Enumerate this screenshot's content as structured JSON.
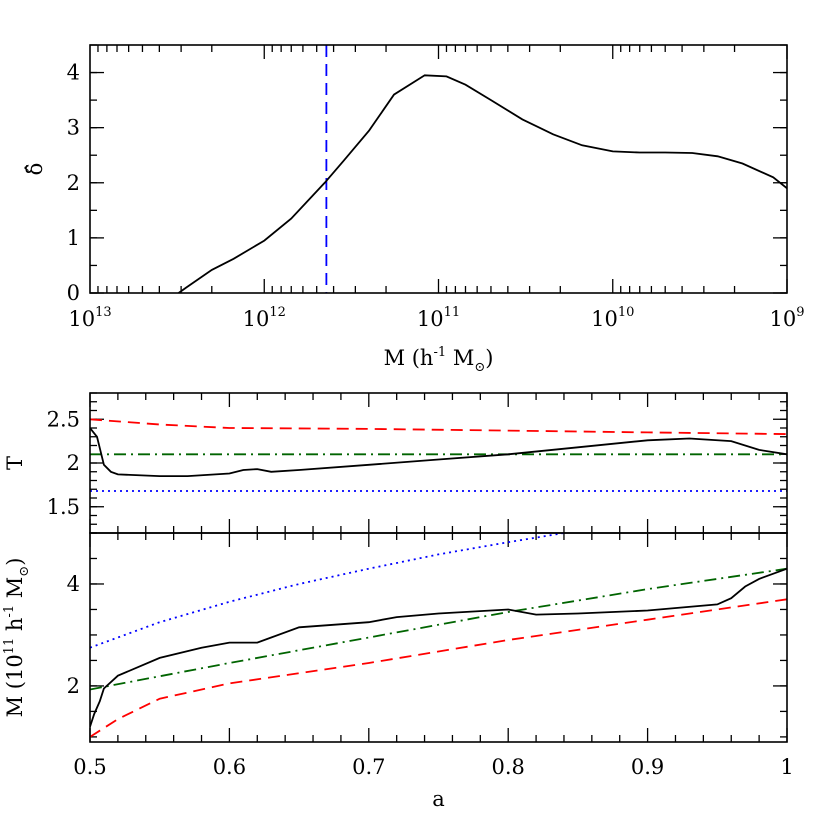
{
  "chart_data": [
    {
      "type": "line",
      "xscale": "log",
      "xreversed": true,
      "xlim": [
        10000000000000.0,
        1000000000.0
      ],
      "ylim": [
        0,
        4.5
      ],
      "xlabel": {
        "base": "M (h",
        "sup1": "-1",
        "mid": " M",
        "sub": "⊙",
        "end": ")"
      },
      "ylabel": "δ̂",
      "xticks": [
        {
          "v": 10000000000000.0,
          "base": "10",
          "exp": "13"
        },
        {
          "v": 1000000000000.0,
          "base": "10",
          "exp": "12"
        },
        {
          "v": 100000000000.0,
          "base": "10",
          "exp": "11"
        },
        {
          "v": 10000000000.0,
          "base": "10",
          "exp": "10"
        },
        {
          "v": 1000000000.0,
          "base": "10",
          "exp": "9"
        }
      ],
      "yticks": [
        {
          "v": 0,
          "label": "0"
        },
        {
          "v": 1,
          "label": "1"
        },
        {
          "v": 2,
          "label": "2"
        },
        {
          "v": 3,
          "label": "3"
        },
        {
          "v": 4,
          "label": "4"
        }
      ],
      "vline": {
        "x": 440000000000.0,
        "color": "#0000ff",
        "style": "dashed"
      },
      "series": [
        {
          "color": "#000000",
          "style": "solid",
          "x": [
            3100000000000.0,
            2800000000000.0,
            2000000000000.0,
            1500000000000.0,
            1000000000000.0,
            700000000000.0,
            450000000000.0,
            350000000000.0,
            250000000000.0,
            180000000000.0,
            120000000000.0,
            90000000000.0,
            70000000000.0,
            50000000000.0,
            33000000000.0,
            22000000000.0,
            15000000000.0,
            10000000000.0,
            7000000000.0,
            5000000000.0,
            3500000000.0,
            2500000000.0,
            1800000000.0,
            1200000000.0,
            1000000000.0
          ],
          "y": [
            0.0,
            0.1,
            0.42,
            0.62,
            0.95,
            1.35,
            2.0,
            2.4,
            2.95,
            3.6,
            3.95,
            3.93,
            3.78,
            3.5,
            3.15,
            2.88,
            2.68,
            2.57,
            2.55,
            2.55,
            2.54,
            2.48,
            2.35,
            2.1,
            1.9
          ]
        }
      ]
    },
    {
      "type": "line",
      "xlim": [
        0.5,
        1.0
      ],
      "ylim": [
        1.2,
        2.8
      ],
      "ylabel": "T",
      "yticks": [
        {
          "v": 1.5,
          "label": "1.5"
        },
        {
          "v": 2.0,
          "label": "2"
        },
        {
          "v": 2.5,
          "label": "2.5"
        }
      ],
      "series": [
        {
          "color": "#ff0000",
          "style": "dashed",
          "x": [
            0.5,
            0.55,
            0.6,
            0.7,
            0.8,
            0.9,
            1.0
          ],
          "y": [
            2.5,
            2.44,
            2.4,
            2.39,
            2.37,
            2.35,
            2.33
          ]
        },
        {
          "color": "#006400",
          "style": "dashdot",
          "x": [
            0.5,
            1.0
          ],
          "y": [
            2.1,
            2.1
          ]
        },
        {
          "color": "#0000ff",
          "style": "dotted",
          "x": [
            0.5,
            1.0
          ],
          "y": [
            1.68,
            1.68
          ]
        },
        {
          "color": "#000000",
          "style": "solid",
          "x": [
            0.5,
            0.505,
            0.51,
            0.515,
            0.52,
            0.55,
            0.57,
            0.6,
            0.61,
            0.62,
            0.63,
            0.65,
            0.7,
            0.75,
            0.8,
            0.85,
            0.9,
            0.93,
            0.96,
            0.98,
            1.0
          ],
          "y": [
            2.4,
            2.3,
            1.98,
            1.9,
            1.87,
            1.85,
            1.85,
            1.88,
            1.92,
            1.93,
            1.9,
            1.92,
            1.98,
            2.04,
            2.1,
            2.18,
            2.26,
            2.28,
            2.25,
            2.15,
            2.1
          ]
        }
      ]
    },
    {
      "type": "line",
      "xlim": [
        0.5,
        1.0
      ],
      "ylim": [
        0.9,
        5.0
      ],
      "xlabel": "a",
      "ylabel": {
        "base": "M (10",
        "sup1": "11",
        "mid": " h",
        "sup2": "-1",
        "mid2": " M",
        "sub": "⊙",
        "end": ")"
      },
      "xticks": [
        {
          "v": 0.5,
          "label": "0.5"
        },
        {
          "v": 0.6,
          "label": "0.6"
        },
        {
          "v": 0.7,
          "label": "0.7"
        },
        {
          "v": 0.8,
          "label": "0.8"
        },
        {
          "v": 0.9,
          "label": "0.9"
        },
        {
          "v": 1.0,
          "label": "1"
        }
      ],
      "yticks": [
        {
          "v": 2,
          "label": "2"
        },
        {
          "v": 4,
          "label": "4"
        }
      ],
      "series": [
        {
          "color": "#0000ff",
          "style": "dotted",
          "x": [
            0.5,
            0.55,
            0.6,
            0.65,
            0.7,
            0.75,
            0.8,
            0.84
          ],
          "y": [
            2.75,
            3.25,
            3.65,
            4.0,
            4.3,
            4.58,
            4.82,
            5.0
          ]
        },
        {
          "color": "#006400",
          "style": "dashdot",
          "x": [
            0.5,
            0.6,
            0.7,
            0.8,
            0.9,
            1.0
          ],
          "y": [
            1.93,
            2.45,
            2.95,
            3.45,
            3.9,
            4.3
          ]
        },
        {
          "color": "#ff0000",
          "style": "dashed",
          "x": [
            0.5,
            0.52,
            0.55,
            0.6,
            0.7,
            0.8,
            0.9,
            1.0
          ],
          "y": [
            1.0,
            1.35,
            1.75,
            2.05,
            2.45,
            2.9,
            3.3,
            3.7
          ]
        },
        {
          "color": "#000000",
          "style": "solid",
          "x": [
            0.5,
            0.503,
            0.507,
            0.51,
            0.52,
            0.55,
            0.58,
            0.6,
            0.62,
            0.63,
            0.65,
            0.7,
            0.72,
            0.75,
            0.8,
            0.82,
            0.85,
            0.9,
            0.95,
            0.96,
            0.97,
            0.98,
            1.0
          ],
          "y": [
            1.2,
            1.45,
            1.7,
            1.95,
            2.2,
            2.55,
            2.75,
            2.85,
            2.85,
            2.95,
            3.15,
            3.25,
            3.35,
            3.42,
            3.5,
            3.4,
            3.42,
            3.48,
            3.6,
            3.72,
            3.95,
            4.1,
            4.3
          ]
        }
      ]
    }
  ]
}
